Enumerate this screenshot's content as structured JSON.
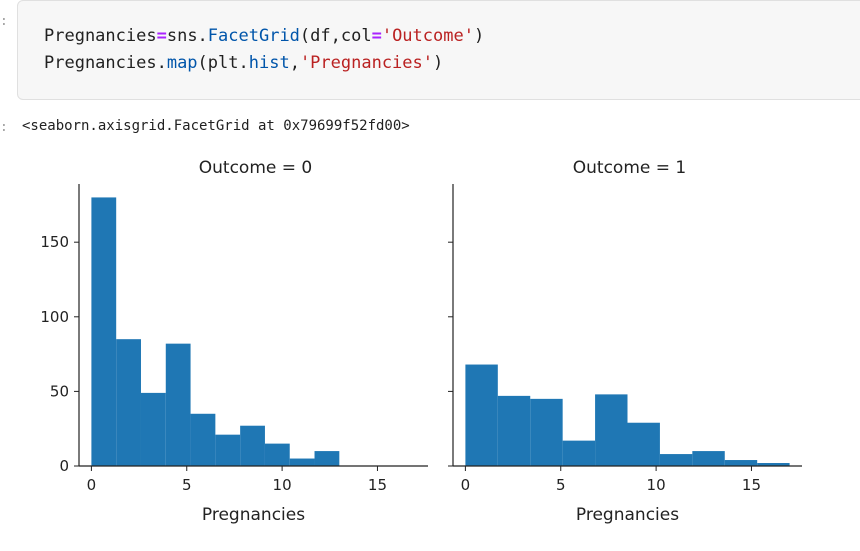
{
  "cell": {
    "in_prompt": ":",
    "out_prompt": ":",
    "code_line1": {
      "var": "Pregnancies",
      "op": "=",
      "mod": "sns.",
      "fn": "FacetGrid",
      "args_pre": "(df,col",
      "op2": "=",
      "str": "'Outcome'",
      "close": ")"
    },
    "code_line2": {
      "var": "Pregnancies.",
      "fn": "map",
      "args_pre": "(plt.",
      "fn2": "hist",
      "comma": ",",
      "str": "'Pregnancies'",
      "close": ")"
    },
    "output": "<seaborn.axisgrid.FacetGrid at 0x79699f52fd00>"
  },
  "chart_data": [
    {
      "type": "bar",
      "title": "Outcome = 0",
      "xlabel": "Pregnancies",
      "ylabel": "",
      "xlim": [
        -0.65,
        17.65
      ],
      "ylim": [
        0,
        189
      ],
      "xticks": [
        0,
        5,
        10,
        15
      ],
      "yticks": [
        0,
        50,
        100,
        150
      ],
      "bin_edges": [
        0,
        1.3,
        2.6,
        3.9,
        5.2,
        6.5,
        7.8,
        9.1,
        10.4,
        11.7,
        13.0
      ],
      "values": [
        180,
        85,
        49,
        82,
        35,
        21,
        27,
        15,
        5,
        10
      ],
      "color": "#1f77b4"
    },
    {
      "type": "bar",
      "title": "Outcome = 1",
      "xlabel": "Pregnancies",
      "ylabel": "",
      "xlim": [
        -0.65,
        17.65
      ],
      "ylim": [
        0,
        189
      ],
      "xticks": [
        0,
        5,
        10,
        15
      ],
      "yticks": [
        0,
        50,
        100,
        150
      ],
      "bin_edges": [
        0,
        1.7,
        3.4,
        5.1,
        6.8,
        8.5,
        10.2,
        11.9,
        13.6,
        15.3,
        17.0
      ],
      "values": [
        68,
        47,
        45,
        17,
        48,
        29,
        8,
        10,
        4,
        2
      ],
      "color": "#1f77b4"
    }
  ]
}
